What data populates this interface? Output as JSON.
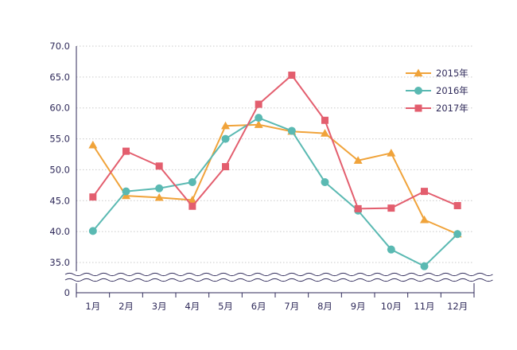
{
  "chart_data": {
    "type": "line",
    "title": "",
    "xlabel": "",
    "ylabel": "",
    "categories": [
      "1月",
      "2月",
      "3月",
      "4月",
      "5月",
      "6月",
      "7月",
      "8月",
      "9月",
      "10月",
      "11月",
      "12月"
    ],
    "y_ticks": [
      "35.0",
      "40.0",
      "45.0",
      "50.0",
      "55.0",
      "60.0",
      "65.0",
      "70.0"
    ],
    "y_zero_label": "0",
    "ylim": [
      35,
      70
    ],
    "axis_break": true,
    "grid": true,
    "legend_position": "top-right",
    "series": [
      {
        "name": "2015年",
        "marker": "triangle",
        "color": "#f0a33a",
        "values": [
          54.0,
          45.8,
          45.5,
          45.1,
          57.1,
          57.3,
          56.2,
          55.9,
          51.5,
          52.7,
          41.9,
          39.6
        ]
      },
      {
        "name": "2016年",
        "marker": "circle",
        "color": "#5ab9b2",
        "values": [
          40.1,
          46.5,
          47.0,
          48.0,
          55.0,
          58.4,
          56.3,
          48.0,
          43.4,
          37.1,
          34.4,
          39.6
        ]
      },
      {
        "name": "2017年",
        "marker": "square",
        "color": "#e35e6e",
        "values": [
          45.6,
          53.0,
          50.6,
          44.1,
          50.5,
          60.6,
          65.3,
          58.0,
          43.7,
          43.8,
          46.5,
          44.2
        ]
      }
    ]
  }
}
